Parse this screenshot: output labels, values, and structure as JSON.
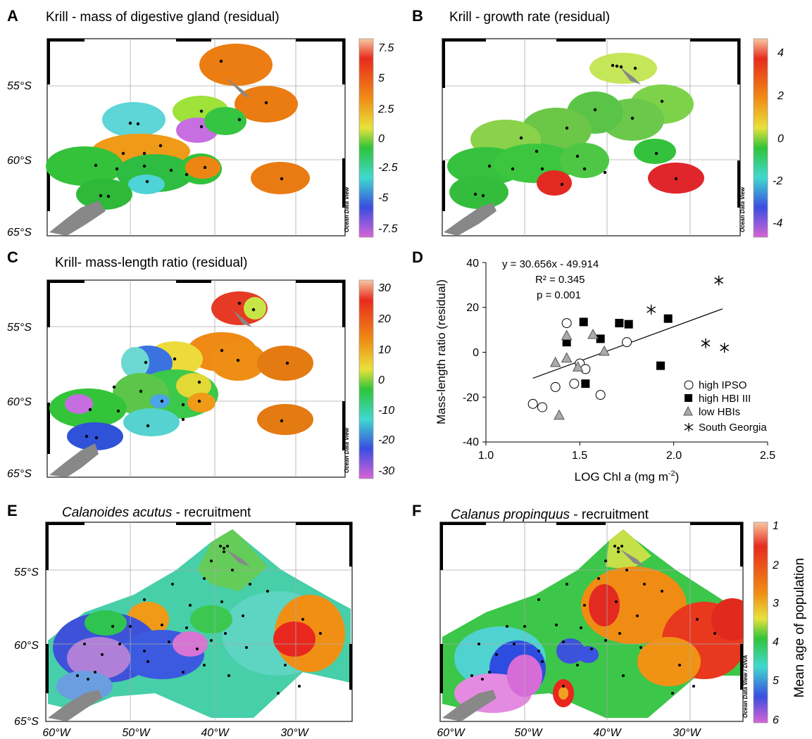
{
  "panels": [
    {
      "id": "A",
      "letter": "A",
      "title": "Krill - mass of digestive gland (residual)",
      "colorbar": {
        "ticks": [
          "7.5",
          "5",
          "2.5",
          "0",
          "-2.5",
          "-5",
          "-7.5"
        ]
      },
      "lat_labels": [
        "55°S",
        "60°S",
        "65°S"
      ],
      "watermark": "Ocean Data View"
    },
    {
      "id": "B",
      "letter": "B",
      "title": "Krill - growth rate (residual)",
      "colorbar": {
        "ticks": [
          "4",
          "2",
          "0",
          "-2",
          "-4"
        ]
      },
      "watermark": "Ocean Data View"
    },
    {
      "id": "C",
      "letter": "C",
      "title": "Krill- mass-length ratio (residual)",
      "colorbar": {
        "ticks": [
          "30",
          "20",
          "10",
          "0",
          "-10",
          "-20",
          "-30"
        ]
      },
      "lat_labels": [
        "55°S",
        "60°S",
        "65°S"
      ],
      "watermark": "Ocean Data View"
    },
    {
      "id": "E",
      "letter": "E",
      "title_italic": "Calanoides acutus",
      "title_rest": " - recruitment",
      "lat_labels": [
        "55°S",
        "60°S",
        "65°S"
      ],
      "lon_labels": [
        "60°W",
        "50°W",
        "40°W",
        "30°W"
      ]
    },
    {
      "id": "F",
      "letter": "F",
      "title_italic": "Calanus propinquus",
      "title_rest": " - recruitment",
      "colorbar": {
        "ticks": [
          "1",
          "2",
          "3",
          "4",
          "5",
          "6"
        ],
        "label": "Mean age of population"
      },
      "lon_labels": [
        "60°W",
        "50°W",
        "40°W",
        "30°W"
      ],
      "watermark": "Ocean Data View / DIVA"
    }
  ],
  "chart_data": {
    "letter": "D",
    "type": "scatter",
    "xlabel_prefix": "LOG  Chl ",
    "xlabel_italic": "a",
    "xlabel_suffix": " (mg m",
    "xlabel_sup": "-2",
    "xlabel_close": ")",
    "ylabel": "Mass-length ratio (residual)",
    "xlim": [
      1.0,
      2.5
    ],
    "ylim": [
      -40,
      40
    ],
    "xticks": [
      "1.0",
      "1.5",
      "2.0",
      "2.5"
    ],
    "yticks": [
      "40",
      "20",
      "0",
      "-20",
      "-40"
    ],
    "equation": "y = 30.656x  - 49.914",
    "r2": "R² = 0.345",
    "p": "p = 0.001",
    "trendline": {
      "slope": 30.656,
      "intercept": -49.914,
      "x": [
        1.25,
        2.26
      ]
    },
    "legend_position": "bottom-right",
    "series": [
      {
        "name": "high IPSO",
        "marker": "circle",
        "points": [
          [
            1.25,
            -23
          ],
          [
            1.3,
            -24.5
          ],
          [
            1.37,
            -15.5
          ],
          [
            1.43,
            13
          ],
          [
            1.47,
            -14
          ],
          [
            1.5,
            -5
          ],
          [
            1.53,
            -7.5
          ],
          [
            1.61,
            -19
          ],
          [
            1.75,
            4.5
          ]
        ]
      },
      {
        "name": "high HBI III",
        "marker": "square",
        "points": [
          [
            1.43,
            4.5
          ],
          [
            1.52,
            13.5
          ],
          [
            1.53,
            -14
          ],
          [
            1.61,
            6
          ],
          [
            1.71,
            13
          ],
          [
            1.76,
            12.5
          ],
          [
            1.97,
            15
          ],
          [
            1.93,
            -6
          ]
        ]
      },
      {
        "name": "low HBIs",
        "marker": "triangle",
        "points": [
          [
            1.37,
            -4.5
          ],
          [
            1.39,
            -28
          ],
          [
            1.43,
            7.5
          ],
          [
            1.43,
            -2.5
          ],
          [
            1.49,
            -6.5
          ],
          [
            1.57,
            8
          ],
          [
            1.63,
            0.5
          ]
        ]
      },
      {
        "name": "South Georgia",
        "marker": "star",
        "points": [
          [
            1.88,
            19
          ],
          [
            2.17,
            4
          ],
          [
            2.24,
            32
          ],
          [
            2.27,
            2
          ]
        ]
      }
    ]
  }
}
